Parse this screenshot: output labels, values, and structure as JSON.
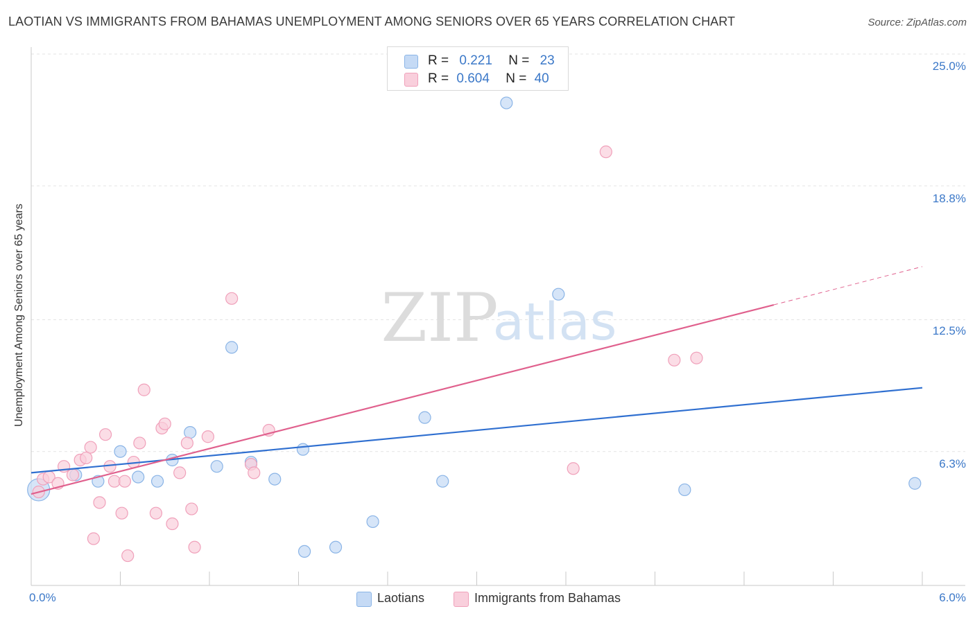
{
  "title": "LAOTIAN VS IMMIGRANTS FROM BAHAMAS UNEMPLOYMENT AMONG SENIORS OVER 65 YEARS CORRELATION CHART",
  "source": "Source: ZipAtlas.com",
  "watermark": {
    "zip": "ZIP",
    "atlas": "atlas"
  },
  "legend": {
    "r_label": "R =",
    "n_label": "N =",
    "series": [
      {
        "r": "0.221",
        "n": "23"
      },
      {
        "r": "0.604",
        "n": "40"
      }
    ]
  },
  "colors": {
    "laotians_fill": "#c5daf5",
    "laotians_stroke": "#8ab4e6",
    "laotians_line": "#2f6fd0",
    "bahamas_fill": "#f9cfdc",
    "bahamas_stroke": "#f0a0ba",
    "bahamas_line": "#e0608d",
    "tick_text": "#3b78c8"
  },
  "chart_data": {
    "type": "scatter",
    "title": "LAOTIAN VS IMMIGRANTS FROM BAHAMAS UNEMPLOYMENT AMONG SENIORS OVER 65 YEARS CORRELATION CHART",
    "xlabel": "",
    "ylabel": "Unemployment Among Seniors over 65 years",
    "xlim": [
      0,
      6.0
    ],
    "ylim": [
      0,
      25.0
    ],
    "x_tick_labels": [
      "0.0%",
      "6.0%"
    ],
    "y_ticks": [
      6.3,
      12.5,
      18.8,
      25.0
    ],
    "y_tick_labels": [
      "6.3%",
      "12.5%",
      "18.8%",
      "25.0%"
    ],
    "grid": true,
    "series": [
      {
        "name": "Laotians",
        "r": 0.221,
        "n": 23,
        "trend": {
          "x": [
            0.0,
            6.0
          ],
          "y": [
            5.3,
            9.3
          ]
        },
        "points": [
          {
            "x": 0.05,
            "y": 4.5,
            "big": true
          },
          {
            "x": 0.3,
            "y": 5.2
          },
          {
            "x": 0.45,
            "y": 4.9
          },
          {
            "x": 0.6,
            "y": 6.3
          },
          {
            "x": 0.72,
            "y": 5.1
          },
          {
            "x": 0.85,
            "y": 4.9
          },
          {
            "x": 0.95,
            "y": 5.9
          },
          {
            "x": 1.07,
            "y": 7.2
          },
          {
            "x": 1.25,
            "y": 5.6
          },
          {
            "x": 1.35,
            "y": 11.2
          },
          {
            "x": 1.48,
            "y": 5.8
          },
          {
            "x": 1.64,
            "y": 5.0
          },
          {
            "x": 1.83,
            "y": 6.4
          },
          {
            "x": 1.84,
            "y": 1.6
          },
          {
            "x": 2.05,
            "y": 1.8
          },
          {
            "x": 2.3,
            "y": 3.0
          },
          {
            "x": 2.65,
            "y": 7.9
          },
          {
            "x": 2.77,
            "y": 4.9
          },
          {
            "x": 3.2,
            "y": 22.7
          },
          {
            "x": 3.55,
            "y": 13.7
          },
          {
            "x": 4.4,
            "y": 4.5
          },
          {
            "x": 5.95,
            "y": 4.8
          }
        ]
      },
      {
        "name": "Immigrants from Bahamas",
        "r": 0.604,
        "n": 40,
        "trend": {
          "x": [
            0.0,
            5.0
          ],
          "y": [
            4.3,
            13.2
          ]
        },
        "trend_dashed": {
          "x": [
            5.0,
            6.0
          ],
          "y": [
            13.2,
            15.0
          ]
        },
        "points": [
          {
            "x": 0.05,
            "y": 4.4
          },
          {
            "x": 0.08,
            "y": 5.0
          },
          {
            "x": 0.12,
            "y": 5.1
          },
          {
            "x": 0.18,
            "y": 4.8
          },
          {
            "x": 0.22,
            "y": 5.6
          },
          {
            "x": 0.28,
            "y": 5.2
          },
          {
            "x": 0.33,
            "y": 5.9
          },
          {
            "x": 0.37,
            "y": 6.0
          },
          {
            "x": 0.4,
            "y": 6.5
          },
          {
            "x": 0.42,
            "y": 2.2
          },
          {
            "x": 0.46,
            "y": 3.9
          },
          {
            "x": 0.5,
            "y": 7.1
          },
          {
            "x": 0.53,
            "y": 5.6
          },
          {
            "x": 0.56,
            "y": 4.9
          },
          {
            "x": 0.61,
            "y": 3.4
          },
          {
            "x": 0.63,
            "y": 4.9
          },
          {
            "x": 0.65,
            "y": 1.4
          },
          {
            "x": 0.69,
            "y": 5.8
          },
          {
            "x": 0.73,
            "y": 6.7
          },
          {
            "x": 0.76,
            "y": 9.2
          },
          {
            "x": 0.84,
            "y": 3.4
          },
          {
            "x": 0.88,
            "y": 7.4
          },
          {
            "x": 0.9,
            "y": 7.6
          },
          {
            "x": 0.95,
            "y": 2.9
          },
          {
            "x": 1.0,
            "y": 5.3
          },
          {
            "x": 1.05,
            "y": 6.7
          },
          {
            "x": 1.08,
            "y": 3.6
          },
          {
            "x": 1.1,
            "y": 1.8
          },
          {
            "x": 1.19,
            "y": 7.0
          },
          {
            "x": 1.35,
            "y": 13.5
          },
          {
            "x": 1.48,
            "y": 5.7
          },
          {
            "x": 1.5,
            "y": 5.3
          },
          {
            "x": 1.6,
            "y": 7.3
          },
          {
            "x": 3.65,
            "y": 5.5
          },
          {
            "x": 3.87,
            "y": 20.4
          },
          {
            "x": 4.33,
            "y": 10.6
          },
          {
            "x": 4.48,
            "y": 10.7
          }
        ]
      }
    ]
  },
  "bottom_legend": [
    "Laotians",
    "Immigrants from Bahamas"
  ]
}
